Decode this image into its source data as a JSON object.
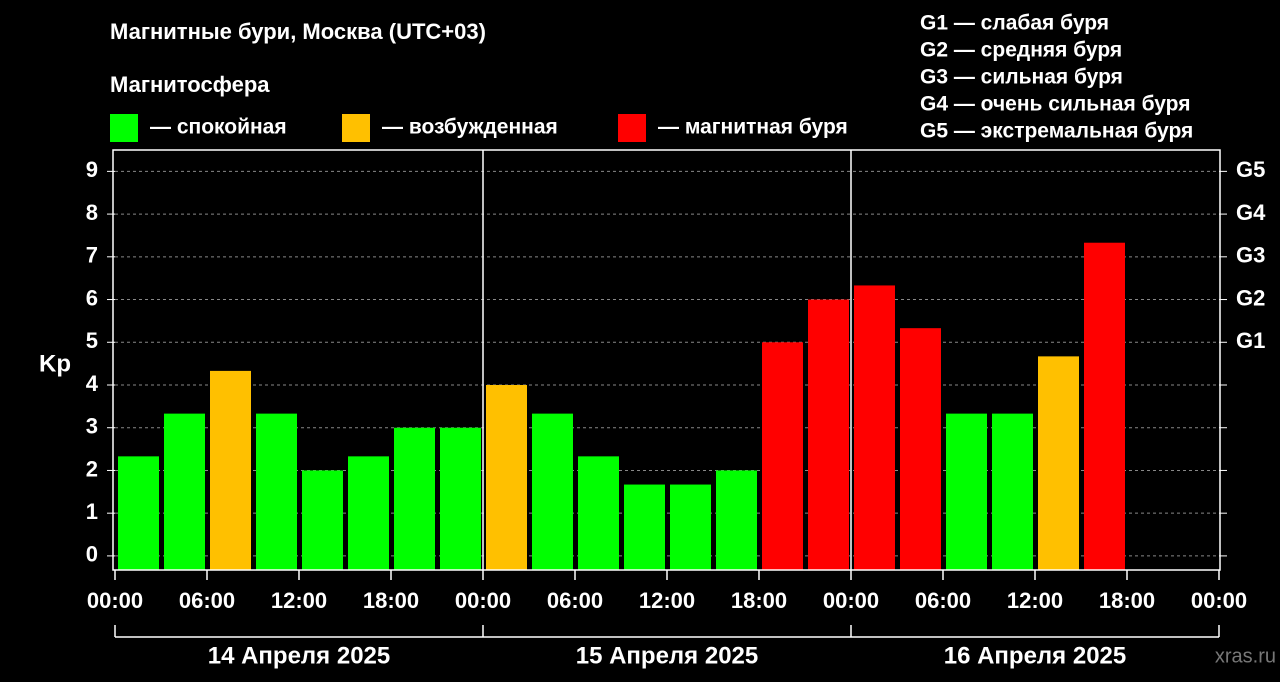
{
  "chart_data": {
    "type": "bar",
    "title": "Магнитные бури, Москва (UTC+03)",
    "legend_title": "Магнитосфера",
    "legend": [
      {
        "name": "— спокойная",
        "color": "#00ff00"
      },
      {
        "name": "— возбужденная",
        "color": "#ffc000"
      },
      {
        "name": "— магнитная буря",
        "color": "#ff0000"
      }
    ],
    "scale_notes": [
      "G1 — слабая буря",
      "G2 — средняя буря",
      "G3 — сильная буря",
      "G4 — очень сильная буря",
      "G5 — экстремальная буря"
    ],
    "ylabel": "Kp",
    "x": [
      0,
      3,
      6,
      9,
      12,
      15,
      18,
      21,
      24,
      27,
      30,
      33,
      36,
      39,
      42,
      45,
      48,
      51,
      54,
      57,
      60,
      63,
      66,
      69
    ],
    "values": [
      2.33,
      3.33,
      4.33,
      3.33,
      2,
      2.33,
      3,
      3,
      4,
      3.33,
      2.33,
      1.67,
      1.67,
      2,
      5,
      6,
      6.33,
      5.33,
      3.33,
      3.33,
      4.67,
      7.33,
      null,
      null
    ],
    "colors": [
      "#00ff00",
      "#00ff00",
      "#ffc000",
      "#00ff00",
      "#00ff00",
      "#00ff00",
      "#00ff00",
      "#00ff00",
      "#ffc000",
      "#00ff00",
      "#00ff00",
      "#00ff00",
      "#00ff00",
      "#00ff00",
      "#ff0000",
      "#ff0000",
      "#ff0000",
      "#ff0000",
      "#00ff00",
      "#00ff00",
      "#ffc000",
      "#ff0000",
      null,
      null
    ],
    "xlim": [
      0,
      72
    ],
    "xticks": [
      {
        "value": 0,
        "label": "00:00"
      },
      {
        "value": 6,
        "label": "06:00"
      },
      {
        "value": 12,
        "label": "12:00"
      },
      {
        "value": 18,
        "label": "18:00"
      },
      {
        "value": 24,
        "label": "00:00"
      },
      {
        "value": 30,
        "label": "06:00"
      },
      {
        "value": 36,
        "label": "12:00"
      },
      {
        "value": 42,
        "label": "18:00"
      },
      {
        "value": 48,
        "label": "00:00"
      },
      {
        "value": 54,
        "label": "06:00"
      },
      {
        "value": 60,
        "label": "12:00"
      },
      {
        "value": 66,
        "label": "18:00"
      },
      {
        "value": 72,
        "label": "00:00"
      }
    ],
    "days": [
      "14 Апреля 2025",
      "15 Апреля 2025",
      "16 Апреля 2025"
    ],
    "ylim": [
      -0.33,
      9.5
    ],
    "yticks": [
      0,
      1,
      2,
      3,
      4,
      5,
      6,
      7,
      8,
      9
    ],
    "y2lim": [
      -0.33,
      9.5
    ],
    "y2ticks": [
      {
        "value": 5,
        "label": "G1"
      },
      {
        "value": 6,
        "label": "G2"
      },
      {
        "value": 7,
        "label": "G3"
      },
      {
        "value": 8,
        "label": "G4"
      },
      {
        "value": 9,
        "label": "G5"
      }
    ],
    "grid": true,
    "watermark": "xras.ru"
  }
}
